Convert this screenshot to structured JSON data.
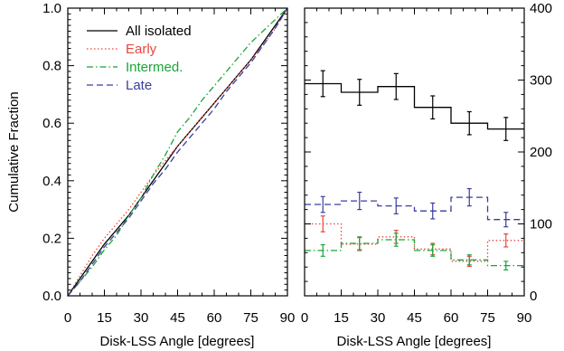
{
  "chart_data": [
    {
      "type": "line",
      "xlabel": "Disk-LSS Angle [degrees]",
      "ylabel": "Cumulative Fraction",
      "xlim": [
        0,
        90
      ],
      "ylim": [
        0,
        1.0
      ],
      "xticks": [
        0,
        15,
        30,
        45,
        60,
        75,
        90
      ],
      "yticks": [
        0.0,
        0.2,
        0.4,
        0.6,
        0.8,
        1.0
      ],
      "ytick_labels": [
        "0.0",
        "0.2",
        "0.4",
        "0.6",
        "0.8",
        "1.0"
      ],
      "grid": false,
      "legend_position": "top-left",
      "series": [
        {
          "name": "All isolated",
          "color": "#000000",
          "dash": "solid",
          "x": [
            0,
            5,
            10,
            15,
            20,
            25,
            30,
            35,
            40,
            45,
            50,
            55,
            60,
            65,
            70,
            75,
            80,
            85,
            90
          ],
          "y": [
            0.0,
            0.06,
            0.12,
            0.18,
            0.23,
            0.28,
            0.34,
            0.4,
            0.46,
            0.52,
            0.57,
            0.62,
            0.67,
            0.72,
            0.77,
            0.82,
            0.88,
            0.94,
            1.0
          ]
        },
        {
          "name": "Early",
          "color": "#e8453c",
          "dash": "dotted",
          "x": [
            0,
            5,
            10,
            15,
            20,
            25,
            30,
            35,
            40,
            45,
            50,
            55,
            60,
            65,
            70,
            75,
            80,
            85,
            90
          ],
          "y": [
            0.0,
            0.07,
            0.14,
            0.2,
            0.25,
            0.3,
            0.36,
            0.42,
            0.47,
            0.52,
            0.57,
            0.62,
            0.67,
            0.72,
            0.77,
            0.82,
            0.87,
            0.93,
            1.0
          ]
        },
        {
          "name": "Intermed.",
          "color": "#1aa538",
          "dash": "dashdot",
          "x": [
            0,
            5,
            10,
            15,
            20,
            25,
            30,
            35,
            40,
            45,
            50,
            55,
            60,
            65,
            70,
            75,
            80,
            85,
            90
          ],
          "y": [
            0.0,
            0.05,
            0.1,
            0.16,
            0.21,
            0.28,
            0.34,
            0.42,
            0.49,
            0.57,
            0.62,
            0.68,
            0.73,
            0.78,
            0.83,
            0.88,
            0.92,
            0.96,
            1.0
          ]
        },
        {
          "name": "Late",
          "color": "#3a3d9c",
          "dash": "dashed",
          "x": [
            0,
            5,
            10,
            15,
            20,
            25,
            30,
            35,
            40,
            45,
            50,
            55,
            60,
            65,
            70,
            75,
            80,
            85,
            90
          ],
          "y": [
            0.0,
            0.05,
            0.11,
            0.17,
            0.22,
            0.27,
            0.33,
            0.39,
            0.44,
            0.5,
            0.55,
            0.6,
            0.65,
            0.71,
            0.76,
            0.81,
            0.87,
            0.93,
            1.0
          ]
        }
      ]
    },
    {
      "type": "line",
      "subtype": "histogram-step",
      "xlabel": "Disk-LSS Angle [degrees]",
      "ylabel": "",
      "xlim": [
        0,
        90
      ],
      "ylim": [
        0,
        400
      ],
      "xticks": [
        0,
        15,
        30,
        45,
        60,
        75,
        90
      ],
      "yticks": [
        0,
        100,
        200,
        300,
        400
      ],
      "yaxis_side": "right",
      "bin_edges": [
        0,
        15,
        30,
        45,
        60,
        75,
        90
      ],
      "bin_centers": [
        7.5,
        22.5,
        37.5,
        52.5,
        67.5,
        82.5
      ],
      "grid": false,
      "series": [
        {
          "name": "All isolated",
          "color": "#000000",
          "dash": "solid",
          "values": [
            295,
            283,
            291,
            262,
            240,
            232
          ],
          "errors": [
            18,
            18,
            18,
            16,
            16,
            16
          ]
        },
        {
          "name": "Early",
          "color": "#e8453c",
          "dash": "dotted",
          "values": [
            100,
            72,
            82,
            65,
            48,
            77
          ],
          "errors": [
            11,
            9,
            9,
            8,
            7,
            9
          ]
        },
        {
          "name": "Intermed.",
          "color": "#1aa538",
          "dash": "dashdot",
          "values": [
            63,
            73,
            78,
            63,
            50,
            42
          ],
          "errors": [
            8,
            9,
            9,
            8,
            7,
            6
          ]
        },
        {
          "name": "Late",
          "color": "#3a3d9c",
          "dash": "dashed",
          "values": [
            127,
            132,
            125,
            118,
            137,
            106
          ],
          "errors": [
            11,
            12,
            11,
            11,
            12,
            10
          ]
        }
      ]
    }
  ]
}
